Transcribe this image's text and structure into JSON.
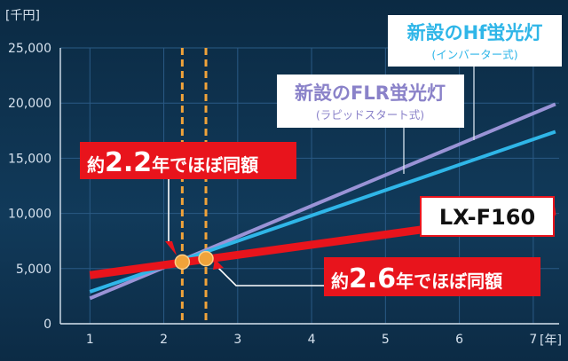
{
  "chart_data": {
    "type": "line",
    "title": "",
    "xlabel": "",
    "ylabel": "",
    "y_unit": "[千円]",
    "x_unit": "[年]",
    "xlim": [
      0.6,
      7.35
    ],
    "ylim": [
      0,
      25000
    ],
    "x_ticks": [
      "1",
      "2",
      "3",
      "4",
      "5",
      "6",
      "7"
    ],
    "y_ticks": [
      "0",
      "5,000",
      "10,000",
      "15,000",
      "20,000",
      "25,000"
    ],
    "grid": true,
    "series": [
      {
        "name": "LX-F160",
        "color": "#e8141c",
        "x": [
          1,
          7.3
        ],
        "y": [
          4400,
          10200
        ]
      },
      {
        "name": "新設のHf蛍光灯",
        "subtitle": "(インバーター式)",
        "color": "#2fb6e8",
        "x": [
          1,
          7.3
        ],
        "y": [
          2900,
          17400
        ]
      },
      {
        "name": "新設のFLR蛍光灯",
        "subtitle": "(ラピッドスタート式)",
        "color": "#9a93d6",
        "x": [
          1,
          7.3
        ],
        "y": [
          2300,
          19900
        ]
      }
    ],
    "markers": [
      {
        "x": 2.25,
        "y": 5600,
        "label_prefix": "約",
        "label_num": "2.2",
        "label_suffix": "年でほぼ同額"
      },
      {
        "x": 2.57,
        "y": 5900,
        "label_prefix": "約",
        "label_num": "2.6",
        "label_suffix": "年でほぼ同額"
      }
    ]
  },
  "colors": {
    "red": "#e8141c",
    "marker": "#f0a33a",
    "dash": "#f0a33a",
    "grid": "#2a5a85"
  }
}
